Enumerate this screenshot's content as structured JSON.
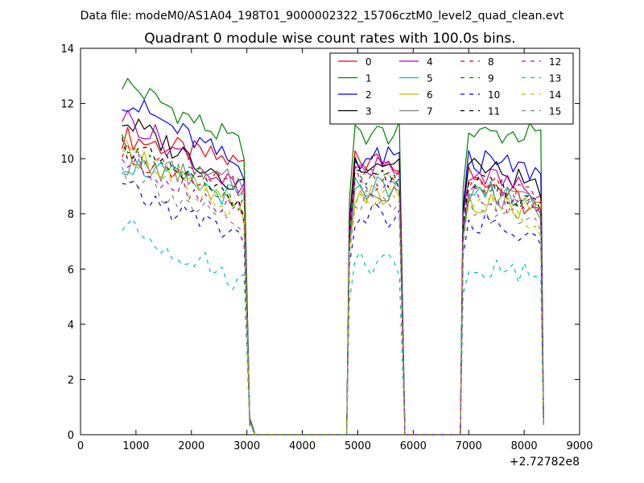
{
  "chart_data": {
    "type": "line",
    "suptitle": "Data file: modeM0/AS1A04_198T01_9000002322_15706cztM0_level2_quad_clean.evt",
    "title": "Quadrant 0 module wise count rates with 100.0s bins.",
    "xlabel": "",
    "ylabel": "",
    "x_offset_label": "+2.72782e8",
    "xlim": [
      0,
      9000
    ],
    "ylim": [
      0,
      14
    ],
    "x_ticks": [
      0,
      1000,
      2000,
      3000,
      4000,
      5000,
      6000,
      7000,
      8000,
      9000
    ],
    "y_ticks": [
      0,
      2,
      4,
      6,
      8,
      10,
      12,
      14
    ],
    "x_tick_labels": [
      "0",
      "1000",
      "2000",
      "3000",
      "4000",
      "5000",
      "6000",
      "7000",
      "8000",
      "9000"
    ],
    "y_tick_labels": [
      "0",
      "2",
      "4",
      "6",
      "8",
      "10",
      "12",
      "14"
    ],
    "grid": false,
    "legend": {
      "placement": "top-right",
      "columns": 4
    },
    "segments": [
      {
        "name": "orbit-1",
        "x_start": 750,
        "x_step": 100,
        "x_end": 2950
      },
      {
        "name": "orbit-2",
        "x_start": 4850,
        "x_step": 100,
        "x_end": 5750
      },
      {
        "name": "orbit-3",
        "x_start": 6900,
        "x_step": 100,
        "x_end": 8250
      }
    ],
    "drop_points": [
      {
        "segment": "orbit-1",
        "x": [
          3050,
          3100,
          3150
        ],
        "frac": [
          0.06,
          0.03,
          0
        ]
      },
      {
        "segment": "orbit-2",
        "x": [
          5850
        ],
        "frac": [
          0
        ]
      },
      {
        "segment": "orbit-3",
        "x": [
          8350
        ],
        "frac": [
          0.05
        ]
      }
    ],
    "zero_gaps": [
      {
        "x_start": 3150,
        "x_end": 4800
      },
      {
        "x_start": 5850,
        "x_end": 6850
      }
    ],
    "series": [
      {
        "name": "0",
        "color": "#ff0000",
        "dash": "solid",
        "level": [
          10.8,
          9.8,
          9.9,
          7.9
        ]
      },
      {
        "name": "1",
        "color": "#008000",
        "dash": "solid",
        "level": [
          12.8,
          10.4,
          10.9,
          10.9
        ]
      },
      {
        "name": "2",
        "color": "#0000ff",
        "dash": "solid",
        "level": [
          12.2,
          9.6,
          10.0,
          9.5
        ]
      },
      {
        "name": "3",
        "color": "#000000",
        "dash": "solid",
        "level": [
          11.4,
          9.0,
          9.9,
          9.0
        ]
      },
      {
        "name": "4",
        "color": "#bf00bf",
        "dash": "solid",
        "level": [
          11.6,
          8.7,
          9.7,
          8.7
        ]
      },
      {
        "name": "5",
        "color": "#00bfbf",
        "dash": "solid",
        "level": [
          9.9,
          8.5,
          9.0,
          8.4
        ]
      },
      {
        "name": "6",
        "color": "#bfbf00",
        "dash": "solid",
        "level": [
          10.4,
          8.0,
          8.6,
          8.0
        ]
      },
      {
        "name": "7",
        "color": "#808080",
        "dash": "solid",
        "level": [
          9.8,
          9.1,
          8.9,
          8.2
        ]
      },
      {
        "name": "8",
        "color": "#ff0000",
        "dash": "dashed",
        "level": [
          10.2,
          8.8,
          9.3,
          8.5
        ]
      },
      {
        "name": "9",
        "color": "#008000",
        "dash": "dashed",
        "level": [
          10.5,
          8.5,
          9.1,
          8.2
        ]
      },
      {
        "name": "10",
        "color": "#0000ff",
        "dash": "dashed",
        "level": [
          8.9,
          7.1,
          7.9,
          6.9
        ]
      },
      {
        "name": "11",
        "color": "#000000",
        "dash": "dashed",
        "level": [
          10.5,
          8.3,
          9.2,
          8.4
        ]
      },
      {
        "name": "12",
        "color": "#bf00bf",
        "dash": "dashed",
        "level": [
          10.0,
          8.0,
          8.9,
          8.0
        ]
      },
      {
        "name": "13",
        "color": "#00bfbf",
        "dash": "dashed",
        "level": [
          7.6,
          5.5,
          6.2,
          5.8
        ]
      },
      {
        "name": "14",
        "color": "#bfbf00",
        "dash": "dashed",
        "level": [
          10.3,
          8.0,
          8.7,
          7.6
        ]
      },
      {
        "name": "15",
        "color": "#808080",
        "dash": "dashed",
        "level": [
          9.6,
          7.3,
          8.4,
          7.4
        ]
      }
    ]
  }
}
